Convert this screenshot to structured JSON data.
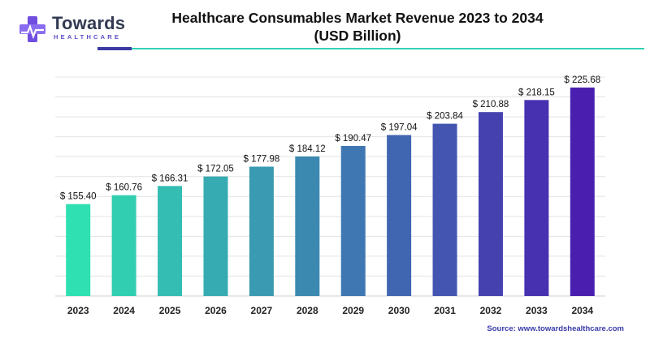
{
  "logo": {
    "brand": "Towards",
    "tagline": "HEALTHCARE"
  },
  "title_line1": "Healthcare Consumables Market Revenue 2023 to 2034",
  "title_line2": "(USD Billion)",
  "source": "Source: www.towardshealthcare.com",
  "colors": {
    "bar_start": "#2fe0b2",
    "bar_end": "#4a1fb0",
    "grid": "#e3e3e3",
    "accent_teal": "#2fd3b0",
    "accent_navy": "#3d3aa3"
  },
  "chart_data": {
    "type": "bar",
    "title": "Healthcare Consumables Market Revenue 2023 to 2034 (USD Billion)",
    "categories": [
      "2023",
      "2024",
      "2025",
      "2026",
      "2027",
      "2028",
      "2029",
      "2030",
      "2031",
      "2032",
      "2033",
      "2034"
    ],
    "values": [
      155.4,
      160.76,
      166.31,
      172.05,
      177.98,
      184.12,
      190.47,
      197.04,
      203.84,
      210.88,
      218.15,
      225.68
    ],
    "value_labels": [
      "$ 155.40",
      "$ 160.76",
      "$ 166.31",
      "$ 172.05",
      "$ 177.98",
      "$ 184.12",
      "$ 190.47",
      "$ 197.04",
      "$ 203.84",
      "$ 210.88",
      "$ 218.15",
      "$ 225.68"
    ],
    "xlabel": "",
    "ylabel": "",
    "ylim": [
      100,
      232
    ],
    "grid": true,
    "legend": "none"
  }
}
